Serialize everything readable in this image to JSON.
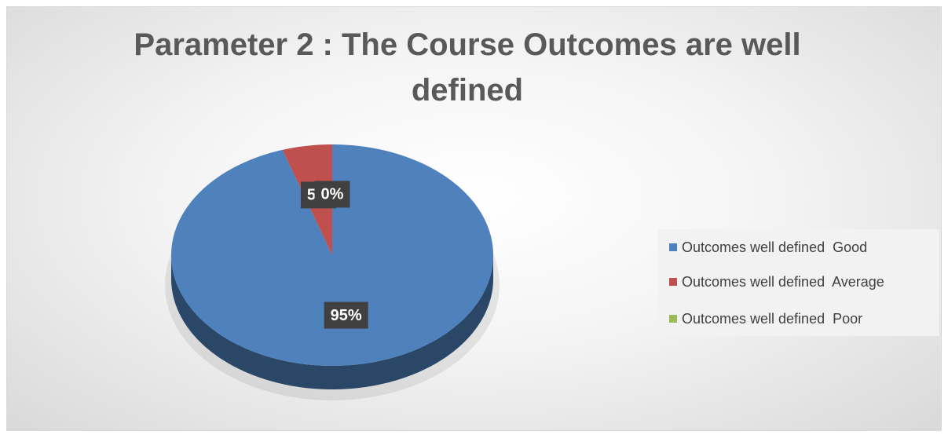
{
  "chart_data": {
    "type": "pie",
    "title": "Parameter 2 : The Course Outcomes are well defined",
    "categories": [
      "Outcomes well defined  Good",
      "Outcomes well defined  Average",
      "Outcomes well defined  Poor"
    ],
    "values": [
      95,
      5,
      0
    ],
    "value_labels": [
      "95%",
      "5%",
      "0%"
    ],
    "colors": [
      "#4f81bd",
      "#c0504d",
      "#9bbb59"
    ],
    "legend": "right"
  }
}
